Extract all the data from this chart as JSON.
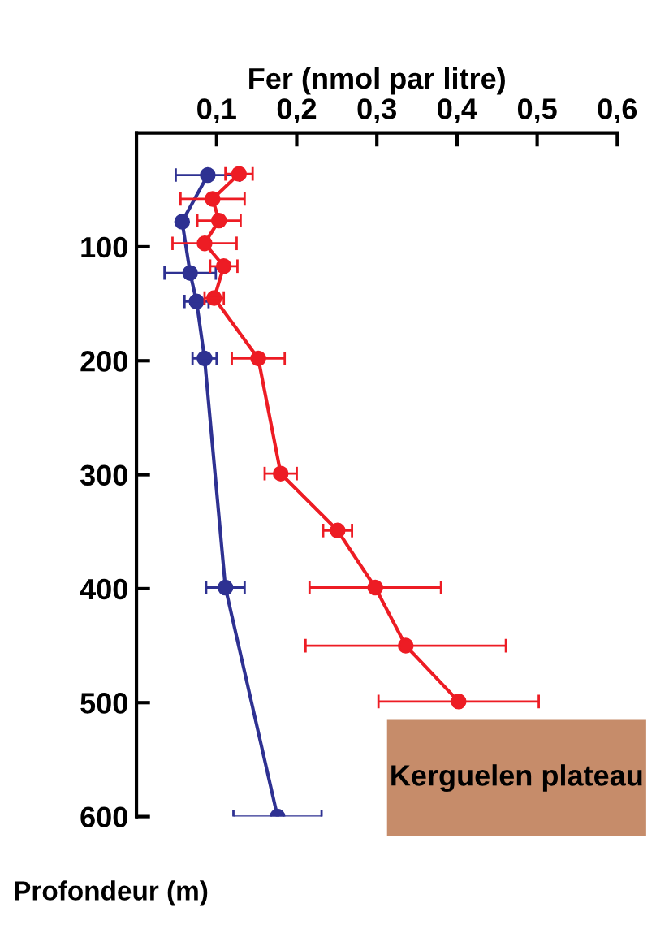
{
  "chart_data": {
    "type": "line",
    "xlabel": "Fer (nmol par litre)",
    "ylabel": "Profondeur (m)",
    "xlim": [
      0,
      0.6
    ],
    "xticks": [
      {
        "value": 0.1,
        "label": "0,1"
      },
      {
        "value": 0.2,
        "label": "0,2"
      },
      {
        "value": 0.3,
        "label": "0,3"
      },
      {
        "value": 0.4,
        "label": "0,4"
      },
      {
        "value": 0.5,
        "label": "0,5"
      },
      {
        "value": 0.6,
        "label": "0,6"
      }
    ],
    "ylim": [
      600,
      0
    ],
    "yticks": [
      100,
      200,
      300,
      400,
      500,
      600
    ],
    "marker": "circle",
    "line_style": "solid",
    "grid": false,
    "legend": false,
    "annotations": [
      "Kerguelen plateau"
    ],
    "series": [
      {
        "color": "#2e3192",
        "x": [
          0.089,
          0.057,
          0.067,
          0.075,
          0.085,
          0.111,
          0.176
        ],
        "values": [
          37,
          78,
          123,
          148,
          198,
          399,
          600
        ],
        "xerrors": [
          0.04,
          null,
          0.032,
          0.015,
          0.015,
          0.024,
          0.055
        ]
      },
      {
        "color": "#ed1c24",
        "x": [
          0.128,
          0.095,
          0.103,
          0.085,
          0.109,
          0.097,
          0.152,
          0.18,
          0.251,
          0.298,
          0.336,
          0.402
        ],
        "values": [
          36,
          58,
          77,
          97,
          117,
          145,
          198,
          299,
          349,
          399,
          450,
          499
        ],
        "xerrors": [
          0.017,
          0.04,
          0.027,
          0.04,
          0.017,
          0.012,
          0.033,
          0.02,
          0.018,
          0.082,
          0.125,
          0.1
        ]
      }
    ]
  }
}
